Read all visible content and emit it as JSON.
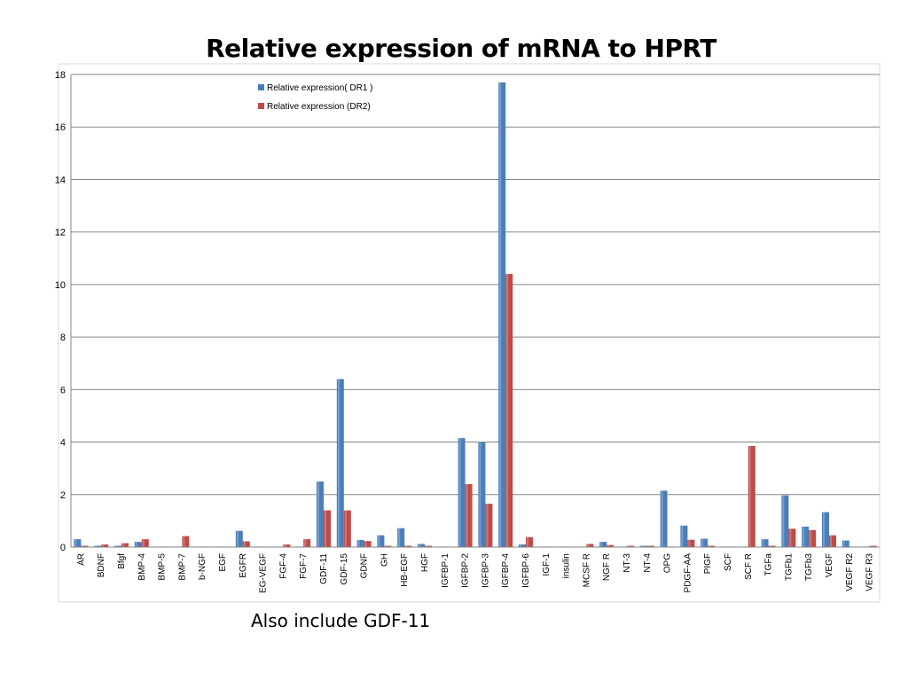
{
  "note": "Also include GDF-11",
  "chart_data": {
    "type": "bar",
    "title": "Relative expression of mRNA to HPRT",
    "xlabel": "",
    "ylabel": "",
    "ylim": [
      0,
      18
    ],
    "yticks": [
      0,
      2,
      4,
      6,
      8,
      10,
      12,
      14,
      16,
      18
    ],
    "grid": true,
    "legend_position": "top-left",
    "categories": [
      "AR",
      "BDNF",
      "Bfgf",
      "BMP-4",
      "BMP-5",
      "BMP-7",
      "b-NGF",
      "EGF",
      "EGFR",
      "EG-VEGF",
      "FGF-4",
      "FGF-7",
      "GDF-11",
      "GDF-15",
      "GDNF",
      "GH",
      "HB-EGF",
      "HGF",
      "IGFBP-1",
      "IGFBP-2",
      "IGFBP-3",
      "IGFBP-4",
      "IGFBP-6",
      "IGF-1",
      "insulin",
      "MCSF R",
      "NGF R",
      "NT-3",
      "NT-4",
      "OPG",
      "PDGF-AA",
      "PIGF",
      "SCF",
      "SCF R",
      "TGFa",
      "TGFb1",
      "TGFb3",
      "VEGF",
      "VEGF R2",
      "VEGF R3"
    ],
    "series": [
      {
        "name": "Relative expression( DR1 )",
        "color": "#4a7ebb",
        "values": [
          0.3,
          0.05,
          0.05,
          0.2,
          0.02,
          0.02,
          0.02,
          0.02,
          0.62,
          0.02,
          0.02,
          0.02,
          2.5,
          6.4,
          0.27,
          0.45,
          0.72,
          0.12,
          0.02,
          4.15,
          4.0,
          17.7,
          0.1,
          0.02,
          0.02,
          0.02,
          0.2,
          0.02,
          0.05,
          2.15,
          0.82,
          0.32,
          0.02,
          0.02,
          0.3,
          1.97,
          0.78,
          1.33,
          0.25,
          0.02
        ]
      },
      {
        "name": "Relative expression (DR2)",
        "color": "#be4b48",
        "values": [
          0.05,
          0.1,
          0.15,
          0.3,
          0.02,
          0.42,
          0.02,
          0.02,
          0.22,
          0.02,
          0.1,
          0.3,
          1.4,
          1.4,
          0.23,
          0.05,
          0.05,
          0.05,
          0.02,
          2.4,
          1.65,
          10.4,
          0.38,
          0.02,
          0.02,
          0.12,
          0.08,
          0.05,
          0.05,
          0.02,
          0.28,
          0.05,
          0.02,
          3.85,
          0.05,
          0.7,
          0.65,
          0.45,
          0.02,
          0.05
        ]
      }
    ]
  }
}
